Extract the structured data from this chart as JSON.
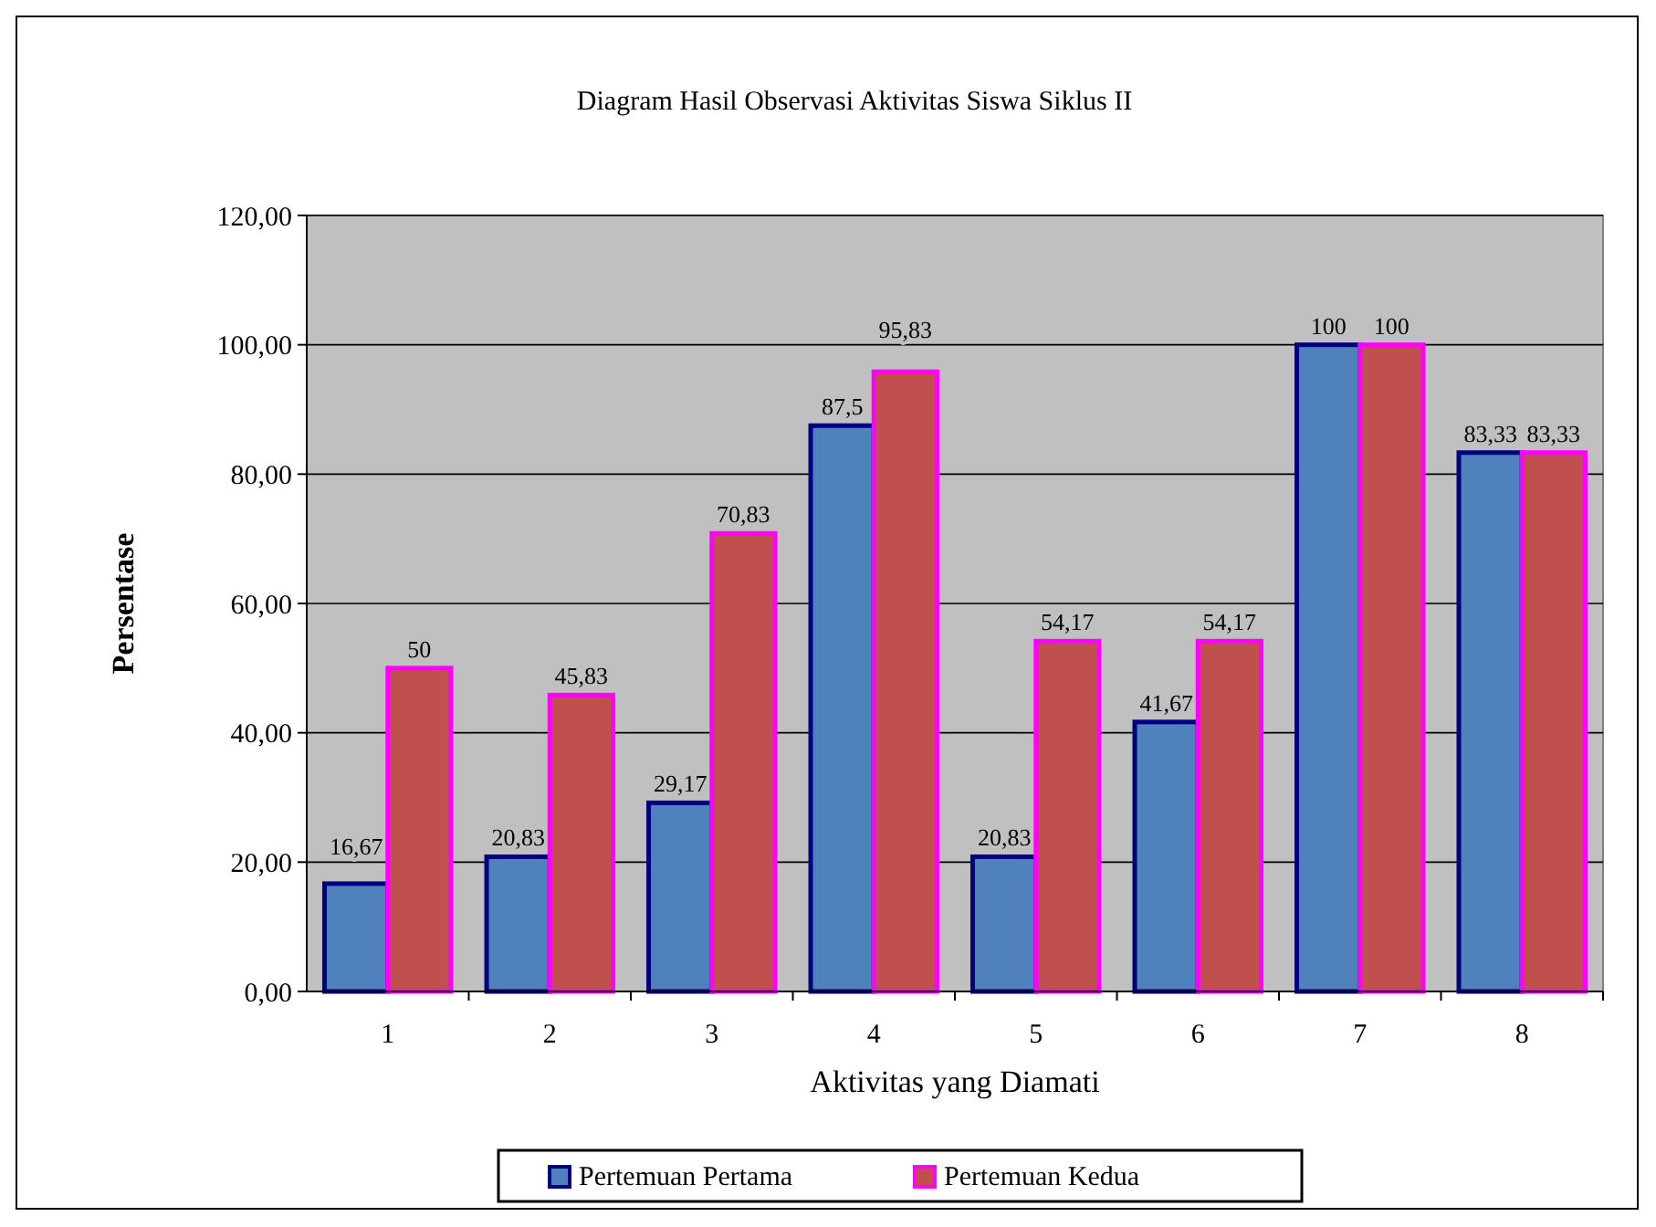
{
  "chart_data": {
    "type": "bar",
    "title": "Diagram Hasil Observasi Aktivitas Siswa Siklus II",
    "xlabel": "Aktivitas yang Diamati",
    "ylabel": "Persentase",
    "categories": [
      "1",
      "2",
      "3",
      "4",
      "5",
      "6",
      "7",
      "8"
    ],
    "series": [
      {
        "name": "Pertemuan Pertama",
        "color": "#4f81bd",
        "values": [
          16.67,
          20.83,
          29.17,
          87.5,
          20.83,
          41.67,
          100,
          83.33
        ],
        "value_labels": [
          "16,67",
          "20,83",
          "29,17",
          "87,5",
          "20,83",
          "41,67",
          "100",
          "83,33"
        ]
      },
      {
        "name": "Pertemuan Kedua",
        "color": "#c0504d",
        "values": [
          50,
          45.83,
          70.83,
          95.83,
          54.17,
          54.17,
          100,
          83.33
        ],
        "value_labels": [
          "50",
          "45,83",
          "70,83",
          "95,83",
          "54,17",
          "54,17",
          "100",
          "83,33"
        ]
      }
    ],
    "ylim": [
      0,
      120
    ],
    "yticks": [
      {
        "value": 0,
        "label": "0,00"
      },
      {
        "value": 20,
        "label": "20,00"
      },
      {
        "value": 40,
        "label": "40,00"
      },
      {
        "value": 60,
        "label": "60,00"
      },
      {
        "value": 80,
        "label": "80,00"
      },
      {
        "value": 100,
        "label": "100,00"
      },
      {
        "value": 120,
        "label": "120,00"
      }
    ],
    "grid": "y",
    "legend": "bottom"
  }
}
